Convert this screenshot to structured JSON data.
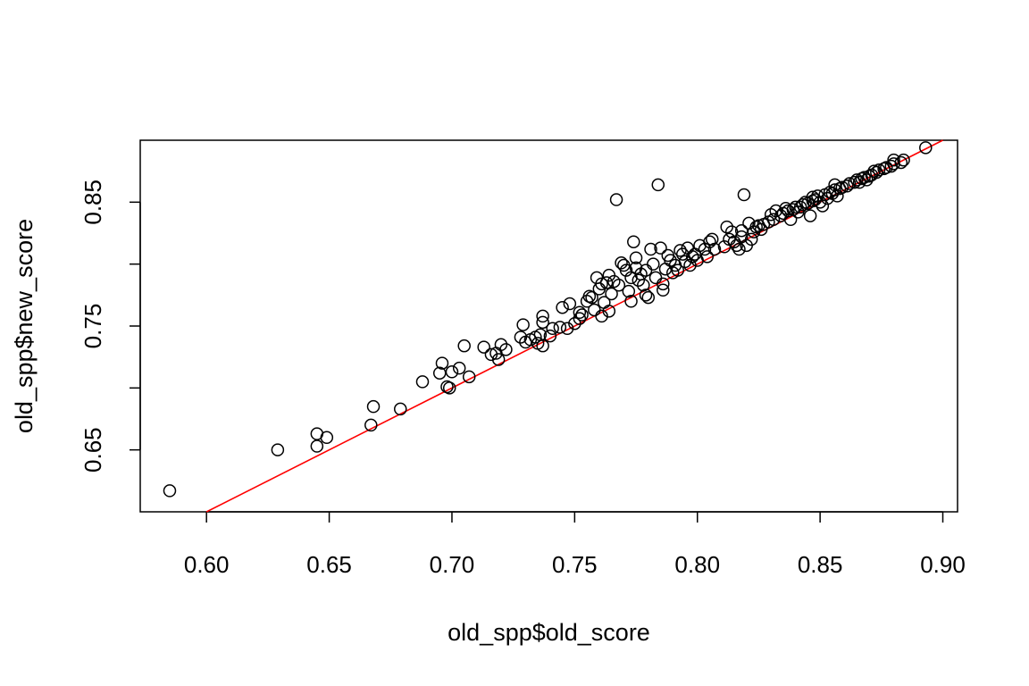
{
  "chart_data": {
    "type": "scatter",
    "title": "",
    "xlabel": "old_spp$old_score",
    "ylabel": "old_spp$new_score",
    "xlim": [
      0.573,
      0.906
    ],
    "ylim": [
      0.6,
      0.9
    ],
    "xticks": [
      0.6,
      0.65,
      0.7,
      0.75,
      0.8,
      0.85,
      0.9
    ],
    "xtick_labels": [
      "0.60",
      "0.65",
      "0.70",
      "0.75",
      "0.80",
      "0.85",
      "0.90"
    ],
    "yticks": [
      0.65,
      0.7,
      0.75,
      0.8,
      0.85
    ],
    "ytick_labels": [
      "0.65",
      "",
      "0.75",
      "",
      "0.85"
    ],
    "grid": false,
    "point_color": "#000000",
    "line_color": "#ff0000",
    "reference_line": {
      "intercept": 0,
      "slope": 1
    },
    "points": [
      [
        0.585,
        0.617
      ],
      [
        0.629,
        0.65
      ],
      [
        0.645,
        0.653
      ],
      [
        0.645,
        0.663
      ],
      [
        0.649,
        0.66
      ],
      [
        0.667,
        0.67
      ],
      [
        0.668,
        0.685
      ],
      [
        0.679,
        0.683
      ],
      [
        0.688,
        0.705
      ],
      [
        0.695,
        0.712
      ],
      [
        0.696,
        0.72
      ],
      [
        0.698,
        0.701
      ],
      [
        0.699,
        0.7
      ],
      [
        0.7,
        0.713
      ],
      [
        0.703,
        0.716
      ],
      [
        0.705,
        0.734
      ],
      [
        0.707,
        0.709
      ],
      [
        0.713,
        0.733
      ],
      [
        0.716,
        0.727
      ],
      [
        0.718,
        0.728
      ],
      [
        0.719,
        0.723
      ],
      [
        0.72,
        0.735
      ],
      [
        0.722,
        0.731
      ],
      [
        0.728,
        0.741
      ],
      [
        0.729,
        0.751
      ],
      [
        0.73,
        0.737
      ],
      [
        0.732,
        0.739
      ],
      [
        0.734,
        0.741
      ],
      [
        0.735,
        0.736
      ],
      [
        0.736,
        0.743
      ],
      [
        0.737,
        0.734
      ],
      [
        0.737,
        0.753
      ],
      [
        0.737,
        0.758
      ],
      [
        0.74,
        0.742
      ],
      [
        0.741,
        0.748
      ],
      [
        0.744,
        0.749
      ],
      [
        0.745,
        0.765
      ],
      [
        0.747,
        0.748
      ],
      [
        0.748,
        0.768
      ],
      [
        0.75,
        0.752
      ],
      [
        0.752,
        0.756
      ],
      [
        0.752,
        0.761
      ],
      [
        0.753,
        0.759
      ],
      [
        0.755,
        0.77
      ],
      [
        0.756,
        0.774
      ],
      [
        0.757,
        0.773
      ],
      [
        0.758,
        0.763
      ],
      [
        0.759,
        0.789
      ],
      [
        0.76,
        0.78
      ],
      [
        0.761,
        0.784
      ],
      [
        0.761,
        0.758
      ],
      [
        0.762,
        0.769
      ],
      [
        0.763,
        0.785
      ],
      [
        0.764,
        0.762
      ],
      [
        0.764,
        0.791
      ],
      [
        0.765,
        0.776
      ],
      [
        0.766,
        0.786
      ],
      [
        0.767,
        0.852
      ],
      [
        0.768,
        0.783
      ],
      [
        0.769,
        0.801
      ],
      [
        0.77,
        0.799
      ],
      [
        0.771,
        0.795
      ],
      [
        0.772,
        0.778
      ],
      [
        0.773,
        0.77
      ],
      [
        0.773,
        0.789
      ],
      [
        0.774,
        0.818
      ],
      [
        0.775,
        0.797
      ],
      [
        0.775,
        0.805
      ],
      [
        0.776,
        0.787
      ],
      [
        0.777,
        0.792
      ],
      [
        0.778,
        0.783
      ],
      [
        0.779,
        0.775
      ],
      [
        0.779,
        0.795
      ],
      [
        0.78,
        0.773
      ],
      [
        0.781,
        0.812
      ],
      [
        0.782,
        0.8
      ],
      [
        0.783,
        0.789
      ],
      [
        0.784,
        0.864
      ],
      [
        0.785,
        0.813
      ],
      [
        0.786,
        0.784
      ],
      [
        0.786,
        0.779
      ],
      [
        0.787,
        0.796
      ],
      [
        0.788,
        0.807
      ],
      [
        0.789,
        0.803
      ],
      [
        0.79,
        0.793
      ],
      [
        0.791,
        0.799
      ],
      [
        0.792,
        0.795
      ],
      [
        0.793,
        0.811
      ],
      [
        0.794,
        0.808
      ],
      [
        0.795,
        0.802
      ],
      [
        0.796,
        0.813
      ],
      [
        0.797,
        0.799
      ],
      [
        0.798,
        0.806
      ],
      [
        0.799,
        0.808
      ],
      [
        0.8,
        0.803
      ],
      [
        0.801,
        0.815
      ],
      [
        0.803,
        0.812
      ],
      [
        0.804,
        0.806
      ],
      [
        0.805,
        0.818
      ],
      [
        0.806,
        0.82
      ],
      [
        0.807,
        0.812
      ],
      [
        0.811,
        0.814
      ],
      [
        0.812,
        0.83
      ],
      [
        0.813,
        0.82
      ],
      [
        0.814,
        0.826
      ],
      [
        0.815,
        0.818
      ],
      [
        0.816,
        0.815
      ],
      [
        0.817,
        0.812
      ],
      [
        0.818,
        0.822
      ],
      [
        0.818,
        0.827
      ],
      [
        0.819,
        0.856
      ],
      [
        0.82,
        0.815
      ],
      [
        0.821,
        0.833
      ],
      [
        0.822,
        0.82
      ],
      [
        0.823,
        0.826
      ],
      [
        0.824,
        0.83
      ],
      [
        0.825,
        0.831
      ],
      [
        0.826,
        0.828
      ],
      [
        0.827,
        0.832
      ],
      [
        0.829,
        0.834
      ],
      [
        0.83,
        0.84
      ],
      [
        0.831,
        0.836
      ],
      [
        0.832,
        0.843
      ],
      [
        0.834,
        0.839
      ],
      [
        0.835,
        0.841
      ],
      [
        0.836,
        0.845
      ],
      [
        0.837,
        0.843
      ],
      [
        0.838,
        0.836
      ],
      [
        0.839,
        0.844
      ],
      [
        0.84,
        0.846
      ],
      [
        0.841,
        0.842
      ],
      [
        0.842,
        0.846
      ],
      [
        0.843,
        0.848
      ],
      [
        0.844,
        0.85
      ],
      [
        0.845,
        0.849
      ],
      [
        0.846,
        0.839
      ],
      [
        0.847,
        0.851
      ],
      [
        0.847,
        0.854
      ],
      [
        0.848,
        0.852
      ],
      [
        0.849,
        0.855
      ],
      [
        0.85,
        0.85
      ],
      [
        0.851,
        0.847
      ],
      [
        0.852,
        0.856
      ],
      [
        0.853,
        0.853
      ],
      [
        0.854,
        0.858
      ],
      [
        0.855,
        0.857
      ],
      [
        0.856,
        0.86
      ],
      [
        0.856,
        0.864
      ],
      [
        0.857,
        0.855
      ],
      [
        0.858,
        0.861
      ],
      [
        0.859,
        0.862
      ],
      [
        0.861,
        0.863
      ],
      [
        0.862,
        0.865
      ],
      [
        0.864,
        0.866
      ],
      [
        0.865,
        0.868
      ],
      [
        0.866,
        0.866
      ],
      [
        0.867,
        0.869
      ],
      [
        0.868,
        0.87
      ],
      [
        0.869,
        0.868
      ],
      [
        0.87,
        0.871
      ],
      [
        0.871,
        0.872
      ],
      [
        0.872,
        0.875
      ],
      [
        0.873,
        0.874
      ],
      [
        0.874,
        0.876
      ],
      [
        0.876,
        0.877
      ],
      [
        0.877,
        0.878
      ],
      [
        0.879,
        0.879
      ],
      [
        0.88,
        0.881
      ],
      [
        0.88,
        0.884
      ],
      [
        0.883,
        0.882
      ],
      [
        0.884,
        0.884
      ],
      [
        0.893,
        0.894
      ]
    ]
  }
}
